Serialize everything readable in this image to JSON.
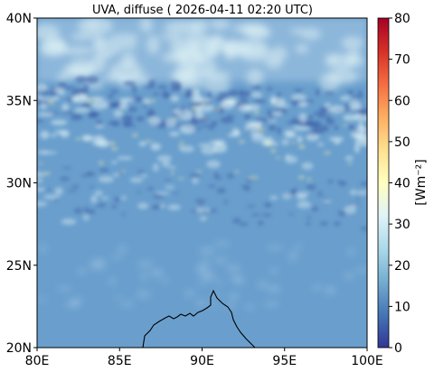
{
  "title": "UVA, diffuse ( 2026-04-11 02:20 UTC)",
  "map": {
    "lon_range": [
      80,
      100
    ],
    "lat_range": [
      20,
      40
    ],
    "x_ticks": [
      "80E",
      "85E",
      "90E",
      "95E",
      "100E"
    ],
    "y_ticks": [
      "20N",
      "25N",
      "30N",
      "35N",
      "40N"
    ],
    "x_tick_values": [
      80,
      85,
      90,
      95,
      100
    ],
    "y_tick_values": [
      20,
      25,
      30,
      35,
      40
    ],
    "coastline_color": "#000000"
  },
  "colorbar": {
    "label": "[Wm⁻²]",
    "ticks": [
      "0",
      "10",
      "20",
      "30",
      "40",
      "50",
      "60",
      "70",
      "80"
    ],
    "tick_values": [
      0,
      10,
      20,
      30,
      40,
      50,
      60,
      70,
      80
    ],
    "range": [
      0,
      80
    ],
    "colormap": "RdYlBu_r",
    "colors": [
      "#313695",
      "#4575b4",
      "#74add1",
      "#abd9e9",
      "#e0f3f8",
      "#ffffbf",
      "#fee090",
      "#fdae61",
      "#f46d43",
      "#d73027",
      "#a50026"
    ]
  },
  "field": {
    "background_color": "#6a9fcd",
    "cloud_band_color": "#3c5fa6",
    "bright_color": "#dbeef2",
    "hot_color": "#f7f0a8"
  }
}
